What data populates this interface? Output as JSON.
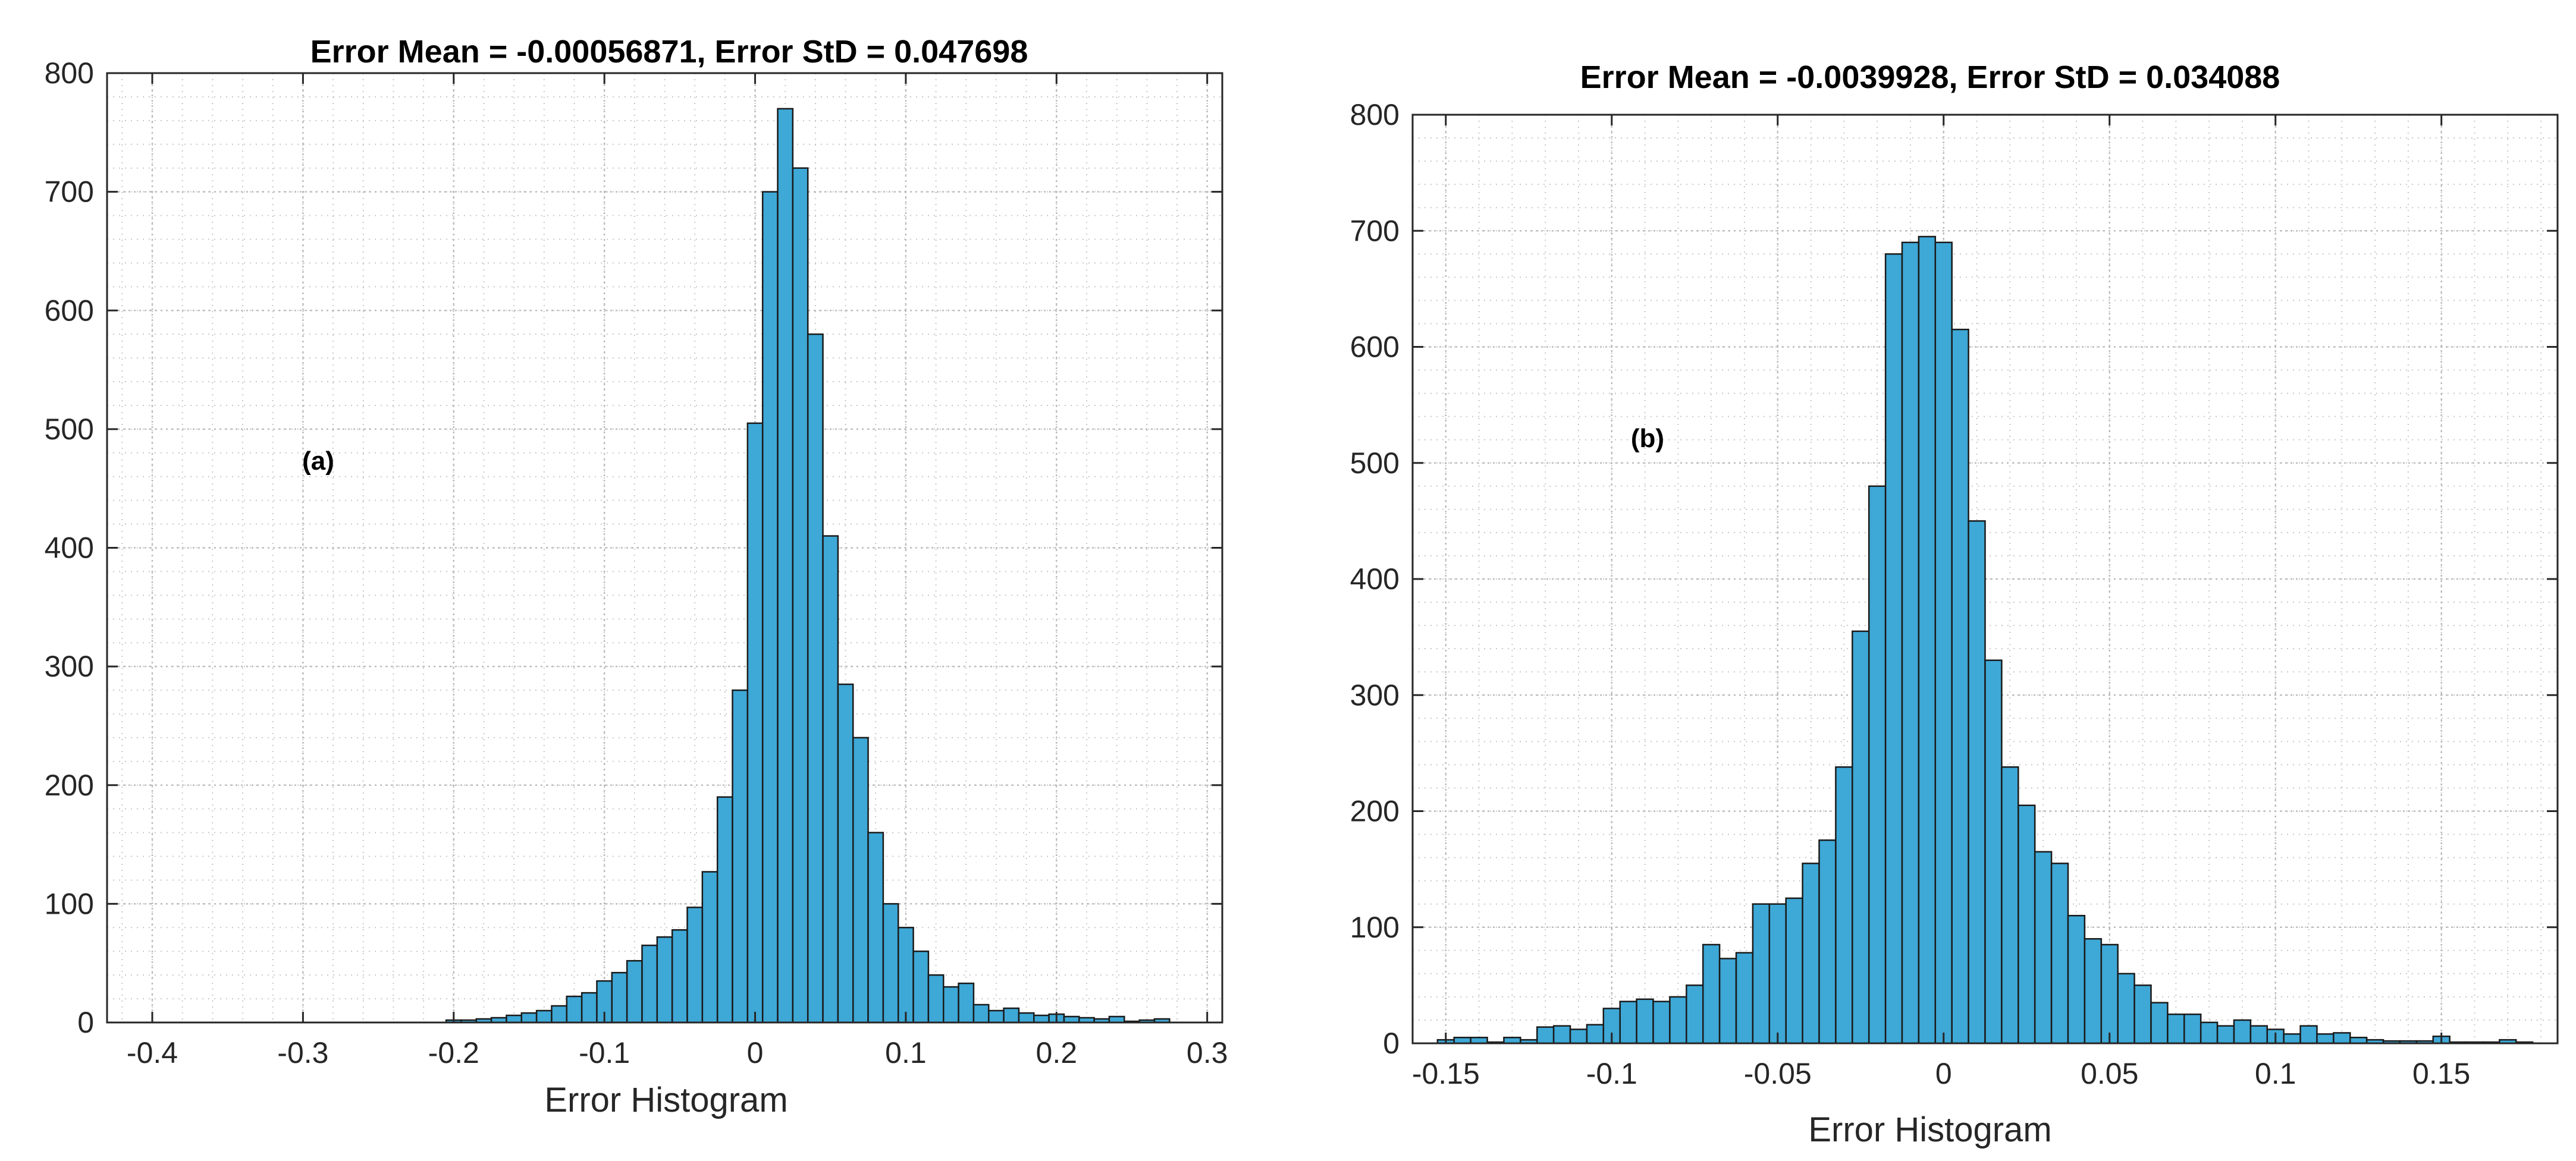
{
  "colors": {
    "bar_fill": "#3ea8d6",
    "bar_stroke": "#1a1a1a",
    "axis": "#262626",
    "grid": "#c8c8c8"
  },
  "chart_data": [
    {
      "type": "bar",
      "panel_label": "(a)",
      "title": "Error Mean = -0.00056871, Error StD = 0.047698",
      "xlabel": "Error Histogram",
      "ylabel": "",
      "xlim": [
        -0.43,
        0.31
      ],
      "ylim": [
        0,
        800
      ],
      "xticks": [
        -0.4,
        -0.3,
        -0.2,
        -0.1,
        0,
        0.1,
        0.2,
        0.3
      ],
      "xtick_labels": [
        "-0.4",
        "-0.3",
        "-0.2",
        "-0.1",
        "0",
        "0.1",
        "0.2",
        "0.3"
      ],
      "yticks": [
        0,
        100,
        200,
        300,
        400,
        500,
        600,
        700,
        800
      ],
      "ytick_labels": [
        "0",
        "100",
        "200",
        "300",
        "400",
        "500",
        "600",
        "700",
        "800"
      ],
      "grid": true,
      "minor_grid": true,
      "bin_width": 0.01,
      "x": [
        -0.2,
        -0.19,
        -0.18,
        -0.17,
        -0.16,
        -0.15,
        -0.14,
        -0.13,
        -0.12,
        -0.11,
        -0.1,
        -0.09,
        -0.08,
        -0.07,
        -0.06,
        -0.05,
        -0.04,
        -0.03,
        -0.02,
        -0.01,
        0.0,
        0.01,
        0.02,
        0.03,
        0.04,
        0.05,
        0.06,
        0.07,
        0.08,
        0.09,
        0.1,
        0.11,
        0.12,
        0.13,
        0.14,
        0.15,
        0.16,
        0.17,
        0.18,
        0.19,
        0.2,
        0.21,
        0.22,
        0.23,
        0.24,
        0.25,
        0.26,
        0.27
      ],
      "values": [
        2,
        2,
        3,
        4,
        6,
        8,
        10,
        14,
        22,
        25,
        35,
        42,
        52,
        65,
        72,
        78,
        97,
        127,
        190,
        280,
        505,
        700,
        770,
        720,
        580,
        410,
        285,
        240,
        160,
        100,
        80,
        60,
        40,
        30,
        33,
        15,
        10,
        12,
        8,
        6,
        7,
        5,
        4,
        3,
        5,
        1,
        2,
        3
      ]
    },
    {
      "type": "bar",
      "panel_label": "(b)",
      "title": "Error Mean = -0.0039928, Error StD = 0.034088",
      "xlabel": "Error Histogram",
      "ylabel": "",
      "xlim": [
        -0.16,
        0.185
      ],
      "ylim": [
        0,
        800
      ],
      "xticks": [
        -0.15,
        -0.1,
        -0.05,
        0,
        0.05,
        0.1,
        0.15
      ],
      "xtick_labels": [
        "-0.15",
        "-0.1",
        "-0.05",
        "0",
        "0.05",
        "0.1",
        "0.15"
      ],
      "yticks": [
        0,
        100,
        200,
        300,
        400,
        500,
        600,
        700,
        800
      ],
      "ytick_labels": [
        "0",
        "100",
        "200",
        "300",
        "400",
        "500",
        "600",
        "700",
        "800"
      ],
      "grid": true,
      "minor_grid": true,
      "bin_width": 0.005,
      "x": [
        -0.15,
        -0.145,
        -0.14,
        -0.135,
        -0.13,
        -0.125,
        -0.12,
        -0.115,
        -0.11,
        -0.105,
        -0.1,
        -0.095,
        -0.09,
        -0.085,
        -0.08,
        -0.075,
        -0.07,
        -0.065,
        -0.06,
        -0.055,
        -0.05,
        -0.045,
        -0.04,
        -0.035,
        -0.03,
        -0.025,
        -0.02,
        -0.015,
        -0.01,
        -0.005,
        0.0,
        0.005,
        0.01,
        0.015,
        0.02,
        0.025,
        0.03,
        0.035,
        0.04,
        0.045,
        0.05,
        0.055,
        0.06,
        0.065,
        0.07,
        0.075,
        0.08,
        0.085,
        0.09,
        0.095,
        0.1,
        0.105,
        0.11,
        0.115,
        0.12,
        0.125,
        0.13,
        0.135,
        0.14,
        0.145,
        0.15,
        0.155,
        0.16,
        0.165,
        0.17,
        0.175
      ],
      "values": [
        3,
        5,
        5,
        1,
        5,
        3,
        14,
        15,
        12,
        16,
        30,
        36,
        38,
        36,
        40,
        50,
        85,
        73,
        78,
        120,
        120,
        125,
        155,
        175,
        238,
        355,
        480,
        680,
        690,
        695,
        690,
        615,
        450,
        330,
        238,
        205,
        165,
        155,
        110,
        90,
        85,
        60,
        50,
        35,
        25,
        25,
        18,
        15,
        20,
        15,
        12,
        8,
        15,
        8,
        9,
        5,
        3,
        2,
        2,
        2,
        6,
        1,
        1,
        1,
        3,
        1
      ]
    }
  ]
}
